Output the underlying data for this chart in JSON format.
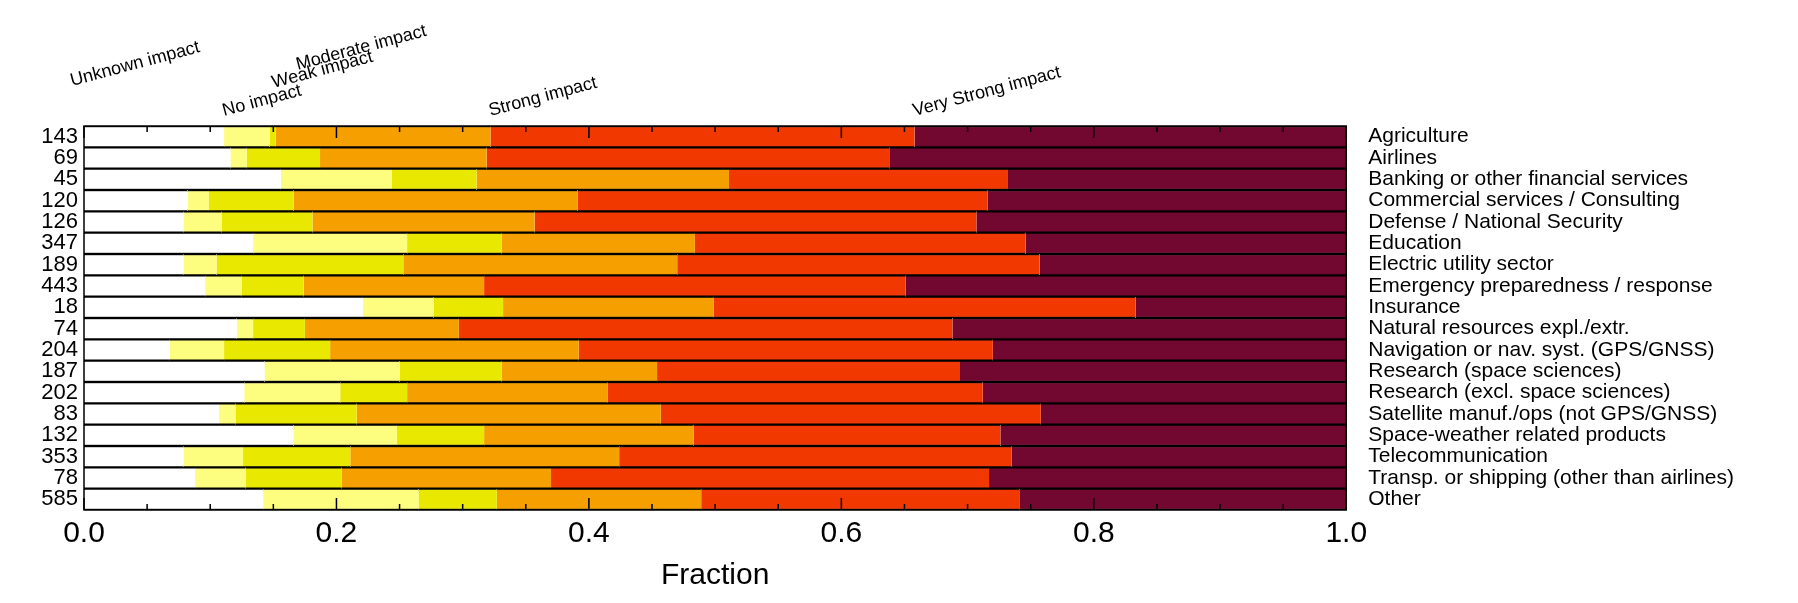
{
  "chart_data": {
    "type": "bar",
    "orientation": "horizontal",
    "stacked": true,
    "xlabel": "Fraction",
    "categories": [
      "Agriculture",
      "Airlines",
      "Banking or other financial services",
      "Commercial services / Consulting",
      "Defense / National Security",
      "Education",
      "Electric utility sector",
      "Emergency preparedness / response",
      "Insurance",
      "Natural resources expl./extr.",
      "Navigation or nav. syst. (GPS/GNSS)",
      "Research (space sciences)",
      "Research (excl. space sciences)",
      "Satellite manuf./ops (not GPS/GNSS)",
      "Space-weather related products",
      "Telecommunication",
      "Transp. or shipping (other than airlines)",
      "Other"
    ],
    "series": [
      {
        "name": "Unknown impact",
        "color": "#ffffff",
        "values": [
          0.111,
          0.116,
          0.156,
          0.082,
          0.079,
          0.134,
          0.079,
          0.096,
          0.221,
          0.121,
          0.068,
          0.143,
          0.127,
          0.107,
          0.166,
          0.079,
          0.088,
          0.142
        ]
      },
      {
        "name": "No impact",
        "color": "#fdfd80",
        "values": [
          0.036,
          0.013,
          0.088,
          0.017,
          0.03,
          0.122,
          0.026,
          0.029,
          0.056,
          0.013,
          0.043,
          0.107,
          0.076,
          0.013,
          0.082,
          0.047,
          0.04,
          0.123
        ]
      },
      {
        "name": "Weak impact",
        "color": "#e8e800",
        "values": [
          0.005,
          0.058,
          0.067,
          0.067,
          0.072,
          0.075,
          0.148,
          0.049,
          0.055,
          0.041,
          0.084,
          0.081,
          0.053,
          0.096,
          0.069,
          0.085,
          0.076,
          0.062
        ]
      },
      {
        "name": "Moderate impact",
        "color": "#f5a000",
        "values": [
          0.17,
          0.132,
          0.2,
          0.225,
          0.176,
          0.153,
          0.217,
          0.143,
          0.167,
          0.122,
          0.197,
          0.123,
          0.159,
          0.241,
          0.166,
          0.213,
          0.166,
          0.162
        ]
      },
      {
        "name": "Strong impact",
        "color": "#f03800",
        "values": [
          0.336,
          0.319,
          0.221,
          0.325,
          0.35,
          0.262,
          0.287,
          0.334,
          0.334,
          0.391,
          0.328,
          0.24,
          0.297,
          0.301,
          0.243,
          0.311,
          0.347,
          0.252
        ]
      },
      {
        "name": "Very Strong impact",
        "color": "#720830",
        "values": [
          0.342,
          0.362,
          0.268,
          0.284,
          0.293,
          0.254,
          0.243,
          0.349,
          0.167,
          0.312,
          0.28,
          0.306,
          0.288,
          0.242,
          0.274,
          0.265,
          0.283,
          0.259
        ]
      }
    ],
    "xlim": [
      0,
      1
    ],
    "xticks": [
      {
        "value": 0,
        "label": "0.0"
      },
      {
        "value": 0.05,
        "label": null
      },
      {
        "value": 0.1,
        "label": null
      },
      {
        "value": 0.15,
        "label": null
      },
      {
        "value": 0.2,
        "label": "0.2"
      },
      {
        "value": 0.25,
        "label": null
      },
      {
        "value": 0.3,
        "label": null
      },
      {
        "value": 0.35,
        "label": null
      },
      {
        "value": 0.4,
        "label": "0.4"
      },
      {
        "value": 0.45,
        "label": null
      },
      {
        "value": 0.5,
        "label": null
      },
      {
        "value": 0.55,
        "label": null
      },
      {
        "value": 0.6,
        "label": "0.6"
      },
      {
        "value": 0.65,
        "label": null
      },
      {
        "value": 0.7,
        "label": null
      },
      {
        "value": 0.75,
        "label": null
      },
      {
        "value": 0.8,
        "label": "0.8"
      },
      {
        "value": 0.85,
        "label": null
      },
      {
        "value": 0.9,
        "label": null
      },
      {
        "value": 0.95,
        "label": null
      },
      {
        "value": 1,
        "label": "1.0"
      }
    ],
    "grid": false,
    "legend": "top",
    "annotations": [
      "143",
      "69",
      "45",
      "120",
      "126",
      "347",
      "189",
      "443",
      "18",
      "74",
      "204",
      "187",
      "202",
      "83",
      "132",
      "353",
      "78",
      "585"
    ]
  }
}
